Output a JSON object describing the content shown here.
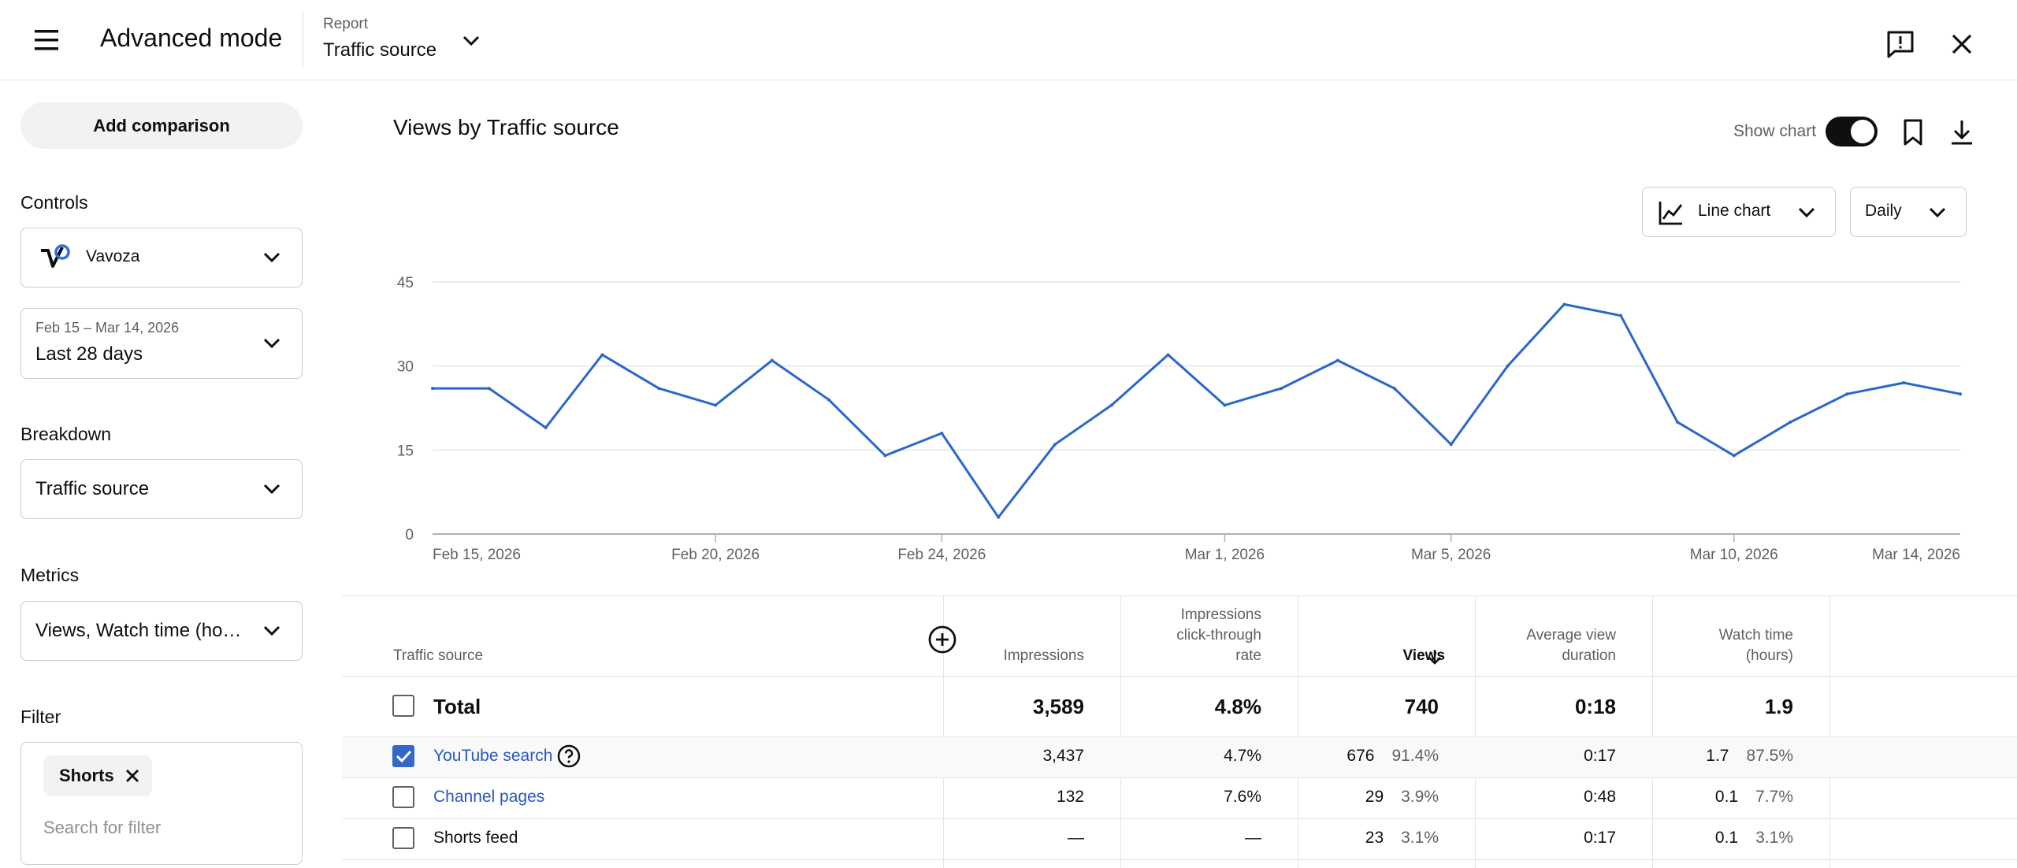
{
  "header": {
    "title": "Advanced mode",
    "report_caption": "Report",
    "report_value": "Traffic source"
  },
  "sidebar": {
    "add_comparison_label": "Add comparison",
    "controls_label": "Controls",
    "channel_name": "Vavoza",
    "date_range": "Feb 15 – Mar 14, 2026",
    "date_preset": "Last 28 days",
    "breakdown_label": "Breakdown",
    "breakdown_value": "Traffic source",
    "metrics_label": "Metrics",
    "metrics_value": "Views, Watch time (ho…",
    "filter_label": "Filter",
    "filter_chip": "Shorts",
    "filter_placeholder": "Search for filter"
  },
  "main": {
    "chart_heading": "Views by Traffic source",
    "show_chart_label": "Show chart",
    "show_chart_on": true,
    "chart_type_label": "Line chart",
    "interval_label": "Daily"
  },
  "chart_data": {
    "type": "line",
    "title": "",
    "xlabel": "",
    "ylabel": "",
    "ylim": [
      0,
      45
    ],
    "yticks": [
      0,
      15,
      30,
      45
    ],
    "x": [
      "2026-02-15",
      "2026-02-16",
      "2026-02-17",
      "2026-02-18",
      "2026-02-19",
      "2026-02-20",
      "2026-02-21",
      "2026-02-22",
      "2026-02-23",
      "2026-02-24",
      "2026-02-25",
      "2026-02-26",
      "2026-02-27",
      "2026-02-28",
      "2026-03-01",
      "2026-03-02",
      "2026-03-03",
      "2026-03-04",
      "2026-03-05",
      "2026-03-06",
      "2026-03-07",
      "2026-03-08",
      "2026-03-09",
      "2026-03-10",
      "2026-03-11",
      "2026-03-12",
      "2026-03-13",
      "2026-03-14"
    ],
    "x_tick_labels": [
      {
        "date": "2026-02-15",
        "label": "Feb 15, 2026"
      },
      {
        "date": "2026-02-20",
        "label": "Feb 20, 2026"
      },
      {
        "date": "2026-02-24",
        "label": "Feb 24, 2026"
      },
      {
        "date": "2026-03-01",
        "label": "Mar 1, 2026"
      },
      {
        "date": "2026-03-05",
        "label": "Mar 5, 2026"
      },
      {
        "date": "2026-03-10",
        "label": "Mar 10, 2026"
      },
      {
        "date": "2026-03-14",
        "label": "Mar 14, 2026"
      }
    ],
    "series": [
      {
        "values": [
          26,
          26,
          19,
          32,
          26,
          23,
          31,
          24,
          14,
          18,
          3,
          16,
          23,
          32,
          23,
          26,
          31,
          26,
          16,
          30,
          41,
          39,
          20,
          14,
          20,
          25,
          27,
          25
        ]
      }
    ],
    "grid": true,
    "line_color": "#2a68c8"
  },
  "table": {
    "headers": {
      "source": "Traffic source",
      "impressions": "Impressions",
      "ctr_line1": "Impressions",
      "ctr_line2": "click-through",
      "ctr_line3": "rate",
      "views": "Views",
      "avd_line1": "Average view",
      "avd_line2": "duration",
      "watch_line1": "Watch time",
      "watch_line2": "(hours)"
    },
    "total": {
      "label": "Total",
      "impressions": "3,589",
      "ctr": "4.8%",
      "views": "740",
      "avd": "0:18",
      "watch": "1.9"
    },
    "rows": [
      {
        "source": "YouTube search",
        "impressions": "3,437",
        "ctr": "4.7%",
        "views": "676",
        "views_pct": "91.4%",
        "avd": "0:17",
        "watch": "1.7",
        "watch_pct": "87.5%"
      },
      {
        "source": "Channel pages",
        "impressions": "132",
        "ctr": "7.6%",
        "views": "29",
        "views_pct": "3.9%",
        "avd": "0:48",
        "watch": "0.1",
        "watch_pct": "7.7%"
      },
      {
        "source": "Shorts feed",
        "impressions": "—",
        "ctr": "—",
        "views": "23",
        "views_pct": "3.1%",
        "avd": "0:17",
        "watch": "0.1",
        "watch_pct": "3.1%"
      }
    ]
  }
}
